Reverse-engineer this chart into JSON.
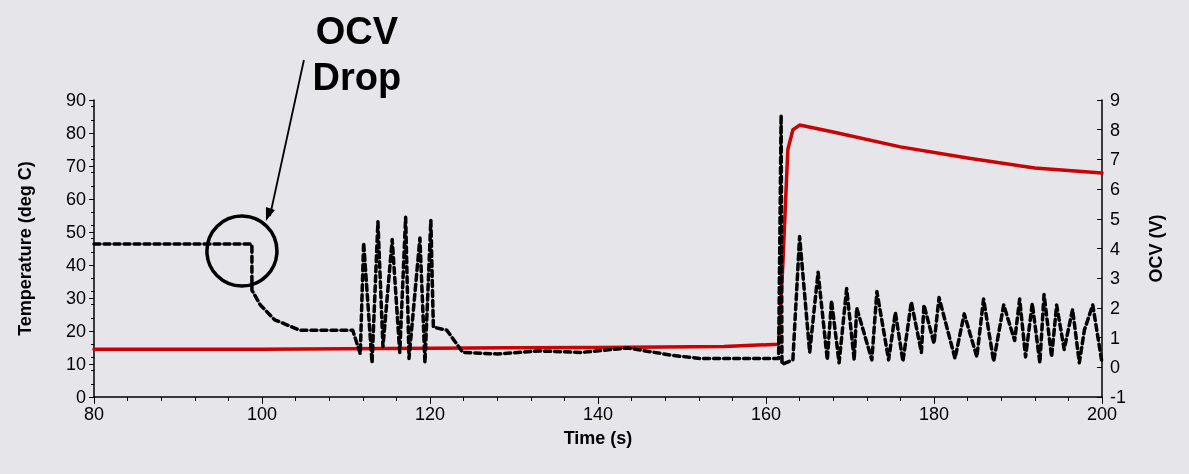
{
  "chart_data": {
    "type": "line",
    "xlabel": "Time (s)",
    "ylabel": "Temperature (deg C)",
    "y2label": "OCV (V)",
    "xlim": [
      80,
      200
    ],
    "xticks": [
      80,
      100,
      120,
      140,
      160,
      180,
      200
    ],
    "ylim": [
      0,
      90
    ],
    "yticks": [
      0,
      10,
      20,
      30,
      40,
      50,
      60,
      70,
      80,
      90
    ],
    "y2lim": [
      -1,
      9
    ],
    "y2ticks": [
      -1,
      0,
      1,
      2,
      3,
      4,
      5,
      6,
      7,
      8,
      9
    ],
    "grid": false,
    "annotations": [
      "OCV Drop"
    ],
    "series": [
      {
        "color": "#cc0000",
        "line_style": "solid",
        "x": [
          80,
          100,
          120,
          140,
          155,
          161.5,
          162,
          162.6,
          163.2,
          164,
          168,
          176,
          184,
          192,
          200
        ],
        "values": [
          14.5,
          14.5,
          14.8,
          15,
          15.3,
          16,
          40,
          75,
          81,
          82.4,
          80.3,
          75.8,
          72.4,
          69.4,
          67.9
        ]
      },
      {
        "color": "#000000",
        "line_style": "dashed",
        "axis": "y2",
        "x": [
          80,
          98.8,
          98.8,
          99.8,
          101.5,
          104.5,
          110.8,
          111.7,
          112.1,
          113.1,
          113.8,
          114.4,
          115.5,
          116.4,
          117.1,
          117.5,
          118.8,
          119.4,
          120.1,
          120.4,
          122,
          123.9,
          128,
          133,
          138,
          143.5,
          148.9,
          152.1,
          161.5,
          161.8,
          161.9,
          163.2,
          164,
          165.2,
          166.2,
          167.3,
          167.8,
          168.7,
          169.6,
          170.5,
          170.8,
          172.6,
          173.2,
          174.6,
          175.4,
          176.3,
          177.3,
          178.5,
          178.8,
          180,
          180.6,
          182.5,
          183.6,
          185.1,
          185.9,
          187.1,
          188.3,
          189.6,
          190.2,
          190.9,
          191.7,
          192.6,
          193.1,
          194,
          194.6,
          195.5,
          196.5,
          197.3,
          197.9,
          198.9,
          200
        ],
        "values": [
          4.15,
          4.15,
          2.6,
          2.1,
          1.6,
          1.25,
          1.25,
          0.45,
          4.2,
          0.15,
          4.9,
          0.7,
          4.3,
          0.5,
          5.05,
          0.3,
          4.35,
          0.15,
          4.95,
          1.35,
          1.25,
          0.5,
          0.45,
          0.55,
          0.5,
          0.65,
          0.4,
          0.3,
          0.3,
          8.5,
          0.1,
          0.25,
          4.4,
          0.5,
          3.2,
          0.25,
          2.25,
          0.15,
          2.65,
          0.25,
          2.0,
          0.25,
          2.55,
          0.25,
          1.85,
          0.2,
          2.2,
          0.5,
          2.1,
          0.8,
          2.35,
          0.3,
          1.8,
          0.35,
          2.3,
          0.2,
          2.1,
          0.9,
          2.3,
          0.35,
          2.15,
          0.15,
          2.45,
          0.35,
          2.1,
          0.6,
          1.95,
          0.15,
          1.25,
          2.1,
          0.15
        ]
      }
    ]
  }
}
